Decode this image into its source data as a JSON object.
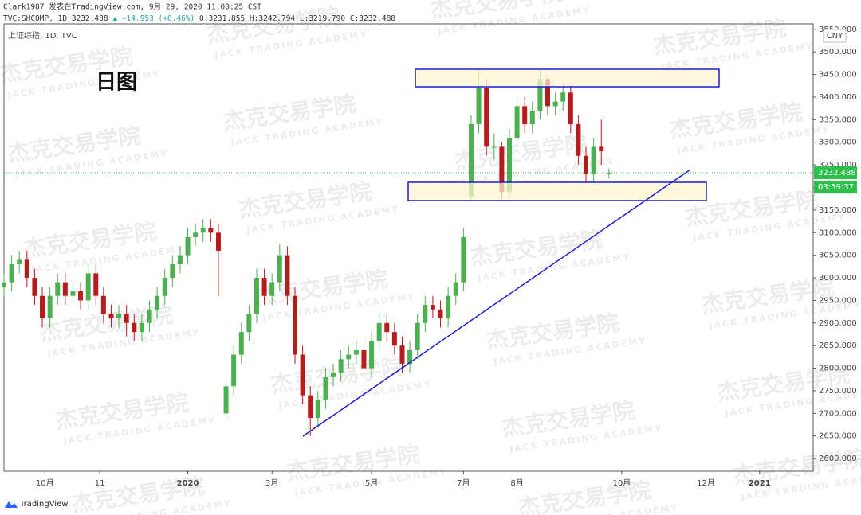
{
  "header": {
    "publisher": "Clark1987 发表在TradingView.com, 9月 29, 2020 11:00:25 CST",
    "symbol": "TVC:SHCOMP, 1D",
    "last": "3232.488",
    "change": "▲ +14.953 (+0.46%)",
    "open": "O:3231.855",
    "high": "H:3242.794",
    "low": "L:3219.790",
    "close": "C:3232.488"
  },
  "watermark": {
    "cn": "杰克交易学院",
    "en": "JACK TRADING ACADEMY"
  },
  "logo": "TradingView",
  "chart_data": {
    "type": "candlestick",
    "title": "上证综指, 1D, TVC",
    "annotation": "日图",
    "currency": "CNY",
    "price_label": "3232.488",
    "price_value": 3232.488,
    "countdown": "03:59:37",
    "up_color": "#4caf50",
    "down_color": "#b71c1c",
    "price_line_color": "#2ec04a",
    "x": [
      0,
      3,
      6,
      9,
      12,
      15,
      18,
      21,
      24,
      27,
      30,
      33,
      36,
      39,
      42,
      45,
      48,
      51,
      54,
      57,
      60,
      63,
      66,
      69,
      72,
      75,
      78,
      81,
      84,
      87,
      90,
      93,
      96,
      99,
      102,
      105,
      108,
      111,
      114,
      117,
      120,
      123,
      126,
      129,
      132,
      135,
      138,
      141,
      144,
      147,
      150,
      153,
      156,
      159,
      162,
      165,
      168,
      171,
      174,
      177,
      180,
      183,
      186,
      189,
      192,
      195,
      198,
      201,
      204,
      207,
      210,
      213,
      216,
      219,
      222,
      225,
      228,
      231,
      234,
      237
    ],
    "open": [
      2980,
      2990,
      3030,
      3040,
      3000,
      2960,
      2910,
      2960,
      2990,
      2960,
      2970,
      2950,
      3010,
      2960,
      2920,
      2910,
      2920,
      2900,
      2880,
      2900,
      2930,
      2960,
      3000,
      3030,
      3050,
      3090,
      3100,
      3110,
      3100,
      2700,
      2760,
      2830,
      2880,
      2920,
      3000,
      2960,
      2990,
      3050,
      2960,
      2830,
      2740,
      2690,
      2730,
      2780,
      2790,
      2820,
      2830,
      2840,
      2800,
      2860,
      2900,
      2880,
      2850,
      2810,
      2840,
      2900,
      2940,
      2930,
      2910,
      2960,
      2990,
      3180,
      3340,
      3420,
      3290,
      3290,
      3190,
      3310,
      3380,
      3340,
      3370,
      3440,
      3380,
      3390,
      3410,
      3340,
      3270,
      3230,
      3290,
      3231.855
    ],
    "high": [
      3010,
      3050,
      3060,
      3060,
      3020,
      2980,
      2980,
      3010,
      3010,
      2990,
      2990,
      3030,
      3030,
      2980,
      2940,
      2940,
      2940,
      2920,
      2920,
      2950,
      2980,
      3020,
      3050,
      3070,
      3110,
      3120,
      3130,
      3130,
      3120,
      2770,
      2850,
      2900,
      2940,
      3020,
      3020,
      3010,
      3075,
      3070,
      2980,
      2850,
      2760,
      2750,
      2800,
      2810,
      2840,
      2850,
      2860,
      2860,
      2880,
      2920,
      2920,
      2900,
      2870,
      2860,
      2920,
      2960,
      2960,
      2950,
      2980,
      3010,
      3110,
      3360,
      3460,
      3440,
      3320,
      3300,
      3330,
      3400,
      3400,
      3390,
      3460,
      3450,
      3410,
      3430,
      3425,
      3360,
      3290,
      3310,
      3350,
      3242.794
    ],
    "low": [
      2960,
      2970,
      3010,
      2980,
      2940,
      2890,
      2890,
      2940,
      2940,
      2940,
      2930,
      2930,
      2940,
      2900,
      2890,
      2890,
      2870,
      2860,
      2860,
      2880,
      2910,
      2940,
      2980,
      3010,
      3030,
      3070,
      3080,
      3080,
      2960,
      2690,
      2740,
      2810,
      2860,
      2900,
      2940,
      2940,
      2970,
      2940,
      2810,
      2720,
      2650,
      2670,
      2710,
      2760,
      2770,
      2800,
      2810,
      2780,
      2780,
      2840,
      2860,
      2830,
      2790,
      2790,
      2820,
      2880,
      2910,
      2890,
      2890,
      2940,
      2970,
      3170,
      3320,
      3270,
      3260,
      3170,
      3170,
      3290,
      3320,
      3320,
      3350,
      3360,
      3360,
      3370,
      3320,
      3250,
      3210,
      3210,
      3250,
      3219.79
    ],
    "close": [
      2990,
      3030,
      3040,
      3000,
      2960,
      2910,
      2960,
      2990,
      2960,
      2970,
      2950,
      3010,
      2960,
      2920,
      2910,
      2920,
      2900,
      2880,
      2900,
      2930,
      2960,
      3000,
      3030,
      3050,
      3090,
      3100,
      3110,
      3100,
      3060,
      2760,
      2830,
      2880,
      2920,
      3000,
      2960,
      2990,
      3050,
      2960,
      2830,
      2740,
      2690,
      2730,
      2780,
      2790,
      2820,
      2830,
      2840,
      2800,
      2860,
      2900,
      2880,
      2850,
      2810,
      2840,
      2900,
      2940,
      2930,
      2910,
      2960,
      2990,
      3090,
      3340,
      3420,
      3290,
      3290,
      3190,
      3310,
      3380,
      3340,
      3370,
      3440,
      3380,
      3390,
      3410,
      3340,
      3270,
      3230,
      3290,
      3280,
      3232.488
    ],
    "xlim": [
      0,
      317
    ],
    "xticks": [
      {
        "value": 16,
        "label": "10月"
      },
      {
        "value": 37.5,
        "label": "11"
      },
      {
        "value": 72,
        "label": "2020"
      },
      {
        "value": 105,
        "label": "3月"
      },
      {
        "value": 144,
        "label": "5月"
      },
      {
        "value": 180,
        "label": "7月"
      },
      {
        "value": 201,
        "label": "8月"
      },
      {
        "value": 242,
        "label": "10月"
      },
      {
        "value": 275,
        "label": "12月"
      },
      {
        "value": 296,
        "label": "2021"
      }
    ],
    "ylim": [
      2572,
      3562
    ],
    "yticks": [
      {
        "value": 2600,
        "label": "2600.000"
      },
      {
        "value": 2650,
        "label": "2650.000"
      },
      {
        "value": 2700,
        "label": "2700.000"
      },
      {
        "value": 2750,
        "label": "2750.000"
      },
      {
        "value": 2800,
        "label": "2800.000"
      },
      {
        "value": 2850,
        "label": "2850.000"
      },
      {
        "value": 2900,
        "label": "2900.000"
      },
      {
        "value": 2950,
        "label": "2950.000"
      },
      {
        "value": 3000,
        "label": "3000.000"
      },
      {
        "value": 3050,
        "label": "3050.000"
      },
      {
        "value": 3100,
        "label": "3100.000"
      },
      {
        "value": 3150,
        "label": "3150.000"
      },
      {
        "value": 3200,
        "label": "3200.000"
      },
      {
        "value": 3250,
        "label": "3250.000"
      },
      {
        "value": 3300,
        "label": "3300.000"
      },
      {
        "value": 3350,
        "label": "3350.000"
      },
      {
        "value": 3400,
        "label": "3400.000"
      },
      {
        "value": 3450,
        "label": "3450.000"
      },
      {
        "value": 3500,
        "label": "3500.000"
      },
      {
        "value": 3550,
        "label": "3550.000"
      }
    ]
  }
}
